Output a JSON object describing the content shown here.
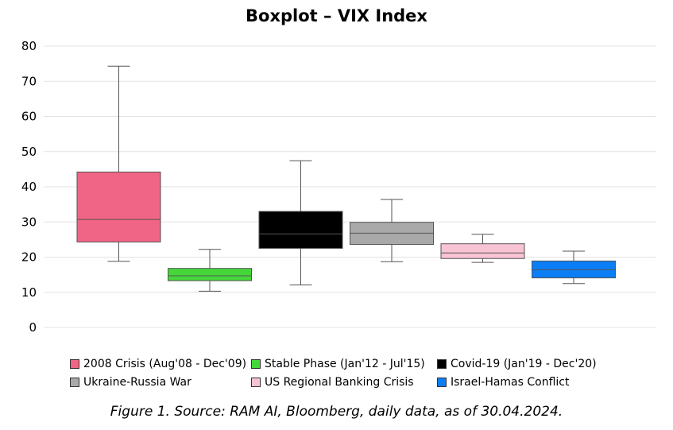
{
  "chart_data": {
    "type": "box",
    "title": "Boxplot – VIX Index",
    "xlabel": "",
    "ylabel": "",
    "ylim": [
      0,
      80
    ],
    "yticks": [
      0,
      10,
      20,
      30,
      40,
      50,
      60,
      70,
      80
    ],
    "grid": true,
    "legend_position": "bottom",
    "series": [
      {
        "name": "2008 Crisis (Aug'08 - Dec'09)",
        "color": "#f06585",
        "min": 18.8,
        "q1": 24.3,
        "median": 30.7,
        "q3": 44.2,
        "max": 74.3
      },
      {
        "name": "Stable Phase (Jan'12 - Jul'15)",
        "color": "#45d73a",
        "min": 10.3,
        "q1": 13.3,
        "median": 14.7,
        "q3": 16.8,
        "max": 22.2
      },
      {
        "name": "Covid-19 (Jan'19 - Dec'20)",
        "color": "#000000",
        "min": 12.1,
        "q1": 22.5,
        "median": 26.6,
        "q3": 33.0,
        "max": 47.4
      },
      {
        "name": "Ukraine-Russia War",
        "color": "#a9a9a9",
        "min": 18.7,
        "q1": 23.6,
        "median": 26.8,
        "q3": 29.9,
        "max": 36.4
      },
      {
        "name": "US Regional Banking Crisis",
        "color": "#f8c3d3",
        "min": 18.5,
        "q1": 19.6,
        "median": 21.2,
        "q3": 23.8,
        "max": 26.5
      },
      {
        "name": "Israel-Hamas Conflict",
        "color": "#0b7ef6",
        "min": 12.5,
        "q1": 14.1,
        "median": 16.4,
        "q3": 18.9,
        "max": 21.7
      }
    ],
    "caption": "Figure 1. Source: RAM AI, Bloomberg, daily data, as of 30.04.2024."
  }
}
